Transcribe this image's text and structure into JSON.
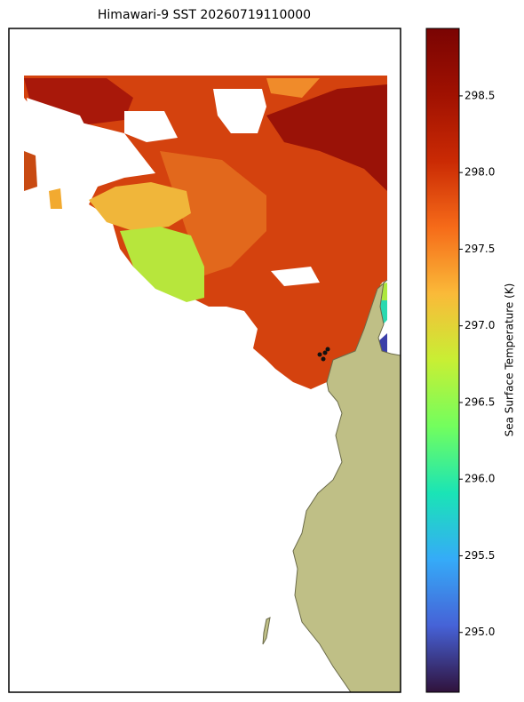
{
  "title": "Himawari-9 SST 20260719110000",
  "colorbar": {
    "label": "Sea Surface Temperature (K)",
    "lim": [
      294.61,
      298.94
    ],
    "ticks": [
      {
        "value": 295,
        "label": "295.0"
      },
      {
        "value": 295.5,
        "label": "295.5"
      },
      {
        "value": 296,
        "label": "296.0"
      },
      {
        "value": 296.5,
        "label": "296.5"
      },
      {
        "value": 297,
        "label": "297.0"
      },
      {
        "value": 297.5,
        "label": "297.5"
      },
      {
        "value": 298,
        "label": "298.0"
      },
      {
        "value": 298.5,
        "label": "298.5"
      }
    ]
  }
}
